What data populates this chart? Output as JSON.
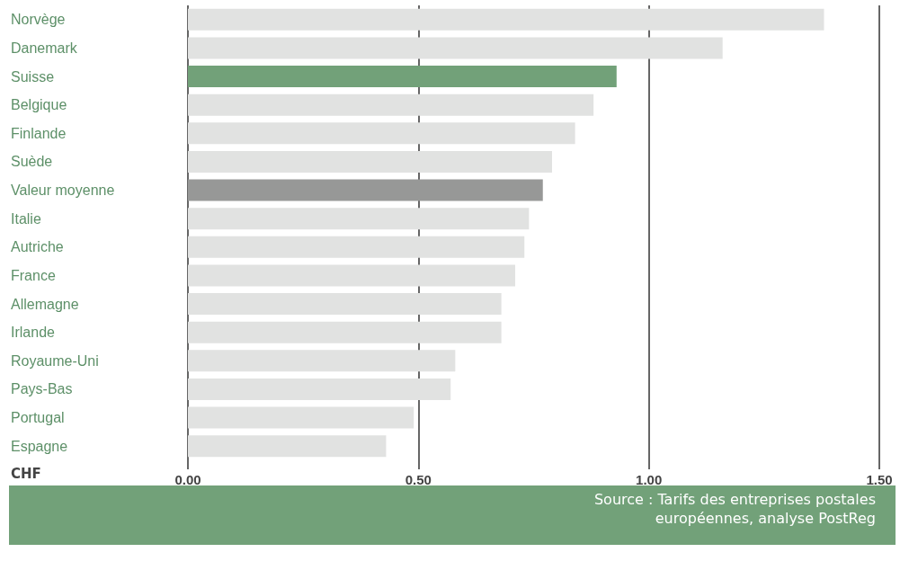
{
  "chart_data": {
    "type": "bar",
    "orientation": "horizontal",
    "xlabel": "CHF",
    "categories": [
      "Norvège",
      "Danemark",
      "Suisse",
      "Belgique",
      "Finlande",
      "Suède",
      "Valeur moyenne",
      "Italie",
      "Autriche",
      "France",
      "Allemagne",
      "Irlande",
      "Royaume-Uni",
      "Pays-Bas",
      "Portugal",
      "Espagne"
    ],
    "values": [
      1.38,
      1.16,
      0.93,
      0.88,
      0.84,
      0.79,
      0.77,
      0.74,
      0.73,
      0.71,
      0.68,
      0.68,
      0.58,
      0.57,
      0.49,
      0.43
    ],
    "colors": [
      "#e1e2e1",
      "#e1e2e1",
      "#72a179",
      "#e1e2e1",
      "#e1e2e1",
      "#e1e2e1",
      "#979897",
      "#e1e2e1",
      "#e1e2e1",
      "#e1e2e1",
      "#e1e2e1",
      "#e1e2e1",
      "#e1e2e1",
      "#e1e2e1",
      "#e1e2e1",
      "#e1e2e1"
    ],
    "xlim": [
      0,
      1.5
    ],
    "xticks": [
      {
        "value": 0,
        "label": "0.00"
      },
      {
        "value": 0.5,
        "label": "0.50"
      },
      {
        "value": 1,
        "label": "1.00"
      },
      {
        "value": 1.5,
        "label": "1.50"
      }
    ],
    "grid": "x",
    "annotations": [
      "Source : Tarifs des entreprises postales européennes, analyse PostReg"
    ]
  }
}
